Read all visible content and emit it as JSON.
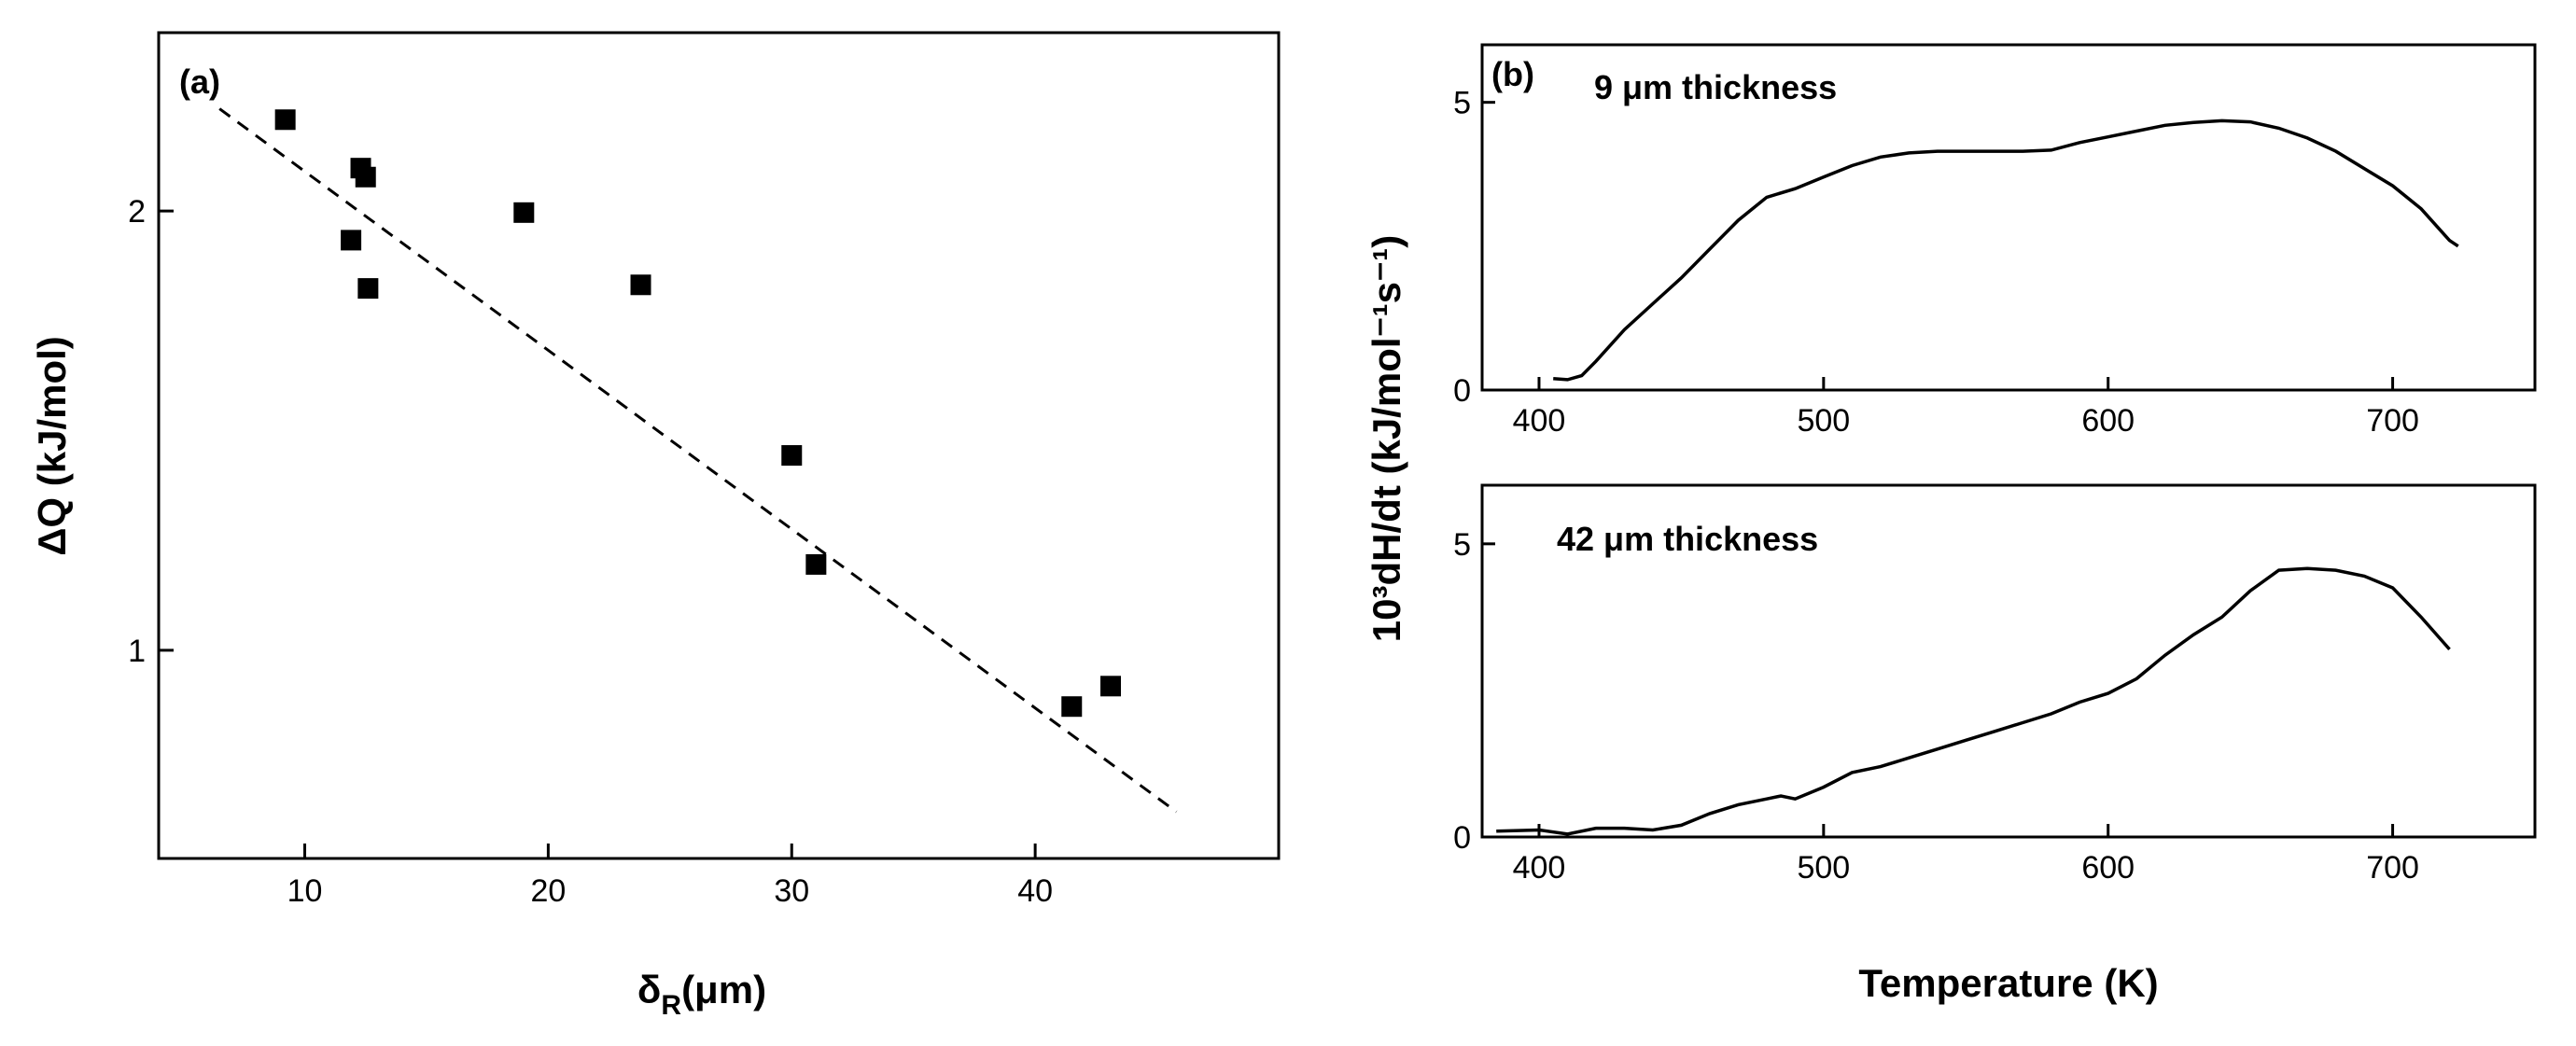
{
  "chart_data": [
    {
      "id": "a",
      "type": "scatter",
      "panel_label": "(a)",
      "xlabel": {
        "main": "δ",
        "sub": "R",
        "rest": "(μm)"
      },
      "ylabel": "ΔQ (kJ/mol)",
      "xlim": [
        4,
        50
      ],
      "ylim": [
        0.72,
        2.65
      ],
      "yscale": "log",
      "xticks": [
        10,
        20,
        30,
        40
      ],
      "yticks": [
        1,
        2
      ],
      "points": [
        [
          9.2,
          2.31
        ],
        [
          12.3,
          2.14
        ],
        [
          12.5,
          2.11
        ],
        [
          11.9,
          1.91
        ],
        [
          12.6,
          1.77
        ],
        [
          19.0,
          1.995
        ],
        [
          23.8,
          1.78
        ],
        [
          30.0,
          1.36
        ],
        [
          31.0,
          1.145
        ],
        [
          41.5,
          0.915
        ],
        [
          43.1,
          0.945
        ]
      ],
      "fit_line": {
        "style": "dashed",
        "x": [
          6.5,
          45.8
        ],
        "y": [
          2.35,
          0.775
        ]
      }
    },
    {
      "id": "b-top",
      "type": "line",
      "panel_label": "(b)",
      "annotation": "9 μm thickness",
      "xlim": [
        380,
        750
      ],
      "ylim": [
        0,
        6
      ],
      "xticks": [
        400,
        500,
        600,
        700
      ],
      "yticks": [
        0,
        5
      ],
      "x": [
        405,
        410,
        415,
        420,
        430,
        440,
        450,
        460,
        470,
        480,
        490,
        500,
        510,
        520,
        530,
        540,
        550,
        560,
        570,
        580,
        590,
        600,
        610,
        620,
        630,
        640,
        650,
        660,
        670,
        680,
        690,
        700,
        710,
        720,
        723
      ],
      "y": [
        0.2,
        0.18,
        0.25,
        0.5,
        1.05,
        1.5,
        1.95,
        2.45,
        2.95,
        3.35,
        3.5,
        3.7,
        3.9,
        4.05,
        4.12,
        4.15,
        4.15,
        4.15,
        4.15,
        4.17,
        4.3,
        4.4,
        4.5,
        4.6,
        4.65,
        4.68,
        4.66,
        4.55,
        4.38,
        4.15,
        3.85,
        3.55,
        3.15,
        2.6,
        2.5
      ]
    },
    {
      "id": "b-bottom",
      "type": "line",
      "annotation": "42 μm thickness",
      "xlabel": "Temperature (K)",
      "shared_ylabel": "10³dH/dt (kJ/mol⁻¹s⁻¹)",
      "xlim": [
        380,
        750
      ],
      "ylim": [
        0,
        6
      ],
      "xticks": [
        400,
        500,
        600,
        700
      ],
      "yticks": [
        0,
        5
      ],
      "x": [
        385,
        400,
        410,
        420,
        430,
        440,
        450,
        460,
        470,
        480,
        485,
        490,
        500,
        510,
        520,
        530,
        540,
        550,
        560,
        570,
        580,
        590,
        600,
        610,
        620,
        630,
        640,
        650,
        660,
        670,
        680,
        690,
        700,
        710,
        720
      ],
      "y": [
        0.1,
        0.12,
        0.05,
        0.15,
        0.15,
        0.12,
        0.2,
        0.4,
        0.55,
        0.65,
        0.7,
        0.65,
        0.85,
        1.1,
        1.2,
        1.35,
        1.5,
        1.65,
        1.8,
        1.95,
        2.1,
        2.3,
        2.45,
        2.7,
        3.1,
        3.45,
        3.75,
        4.2,
        4.55,
        4.58,
        4.55,
        4.45,
        4.25,
        3.75,
        3.2
      ]
    }
  ]
}
